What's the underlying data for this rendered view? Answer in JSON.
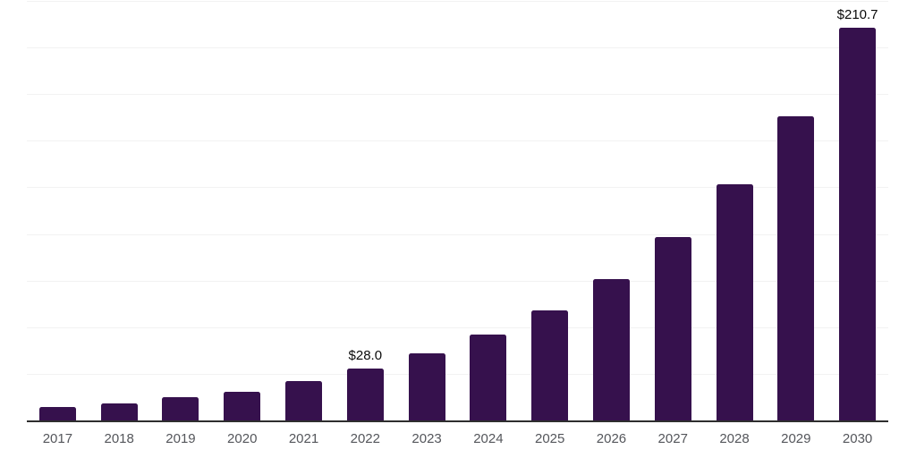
{
  "chart_data": {
    "type": "bar",
    "title": "",
    "xlabel": "",
    "ylabel": "",
    "categories": [
      "2017",
      "2018",
      "2019",
      "2020",
      "2021",
      "2022",
      "2023",
      "2024",
      "2025",
      "2026",
      "2027",
      "2028",
      "2029",
      "2030"
    ],
    "values": [
      7.0,
      9.1,
      12.3,
      15.2,
      21.2,
      28.0,
      35.8,
      46.1,
      59.0,
      75.9,
      98.2,
      126.6,
      163.2,
      210.7
    ],
    "data_labels": {
      "2022": "$28.0",
      "2030": "$210.7"
    },
    "ylim": [
      0,
      225
    ],
    "grid_step": 25,
    "grid": true,
    "legend": "none",
    "colors": {
      "bar": "#36114D",
      "grid": "#f2f2f2",
      "axis_line": "#2e2e2e",
      "tick_label": "#54565b",
      "data_label": "#0a0a0a",
      "background": "#ffffff"
    }
  }
}
